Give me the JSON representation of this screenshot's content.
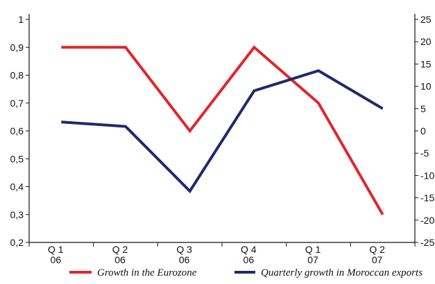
{
  "chart_data": {
    "type": "line",
    "categories": [
      {
        "line1": "Q 1",
        "line2": "06"
      },
      {
        "line1": "Q 2",
        "line2": "06"
      },
      {
        "line1": "Q 3",
        "line2": "06"
      },
      {
        "line1": "Q 4",
        "line2": "06"
      },
      {
        "line1": "Q 1",
        "line2": "07"
      },
      {
        "line1": "Q 2",
        "line2": "07"
      }
    ],
    "y_left": {
      "range": [
        0.2,
        1.0
      ],
      "ticks": [
        "0,2",
        "0,3",
        "0,4",
        "0,5",
        "0,6",
        "0,7",
        "0,8",
        "0,9",
        "1"
      ],
      "tick_values": [
        0.2,
        0.3,
        0.4,
        0.5,
        0.6,
        0.7,
        0.8,
        0.9,
        1.0
      ]
    },
    "y_right": {
      "range": [
        -25,
        25
      ],
      "ticks": [
        "-25",
        "-20",
        "-15",
        "-10",
        "-5",
        "0",
        "5",
        "10",
        "15",
        "20",
        "25"
      ],
      "tick_values": [
        -25,
        -20,
        -15,
        -10,
        -5,
        0,
        5,
        10,
        15,
        20,
        25
      ]
    },
    "series": [
      {
        "name": "Growth in the Eurozone",
        "axis": "left",
        "color": "#e0262b",
        "values": [
          0.9,
          0.9,
          0.6,
          0.9,
          0.7,
          0.3
        ]
      },
      {
        "name": "Quarterly growth in Moroccan exports",
        "axis": "right",
        "color": "#1f2a6b",
        "values": [
          2.0,
          1.0,
          -13.5,
          9.0,
          13.5,
          5.0
        ]
      }
    ],
    "grid": false,
    "legend_position": "bottom"
  }
}
